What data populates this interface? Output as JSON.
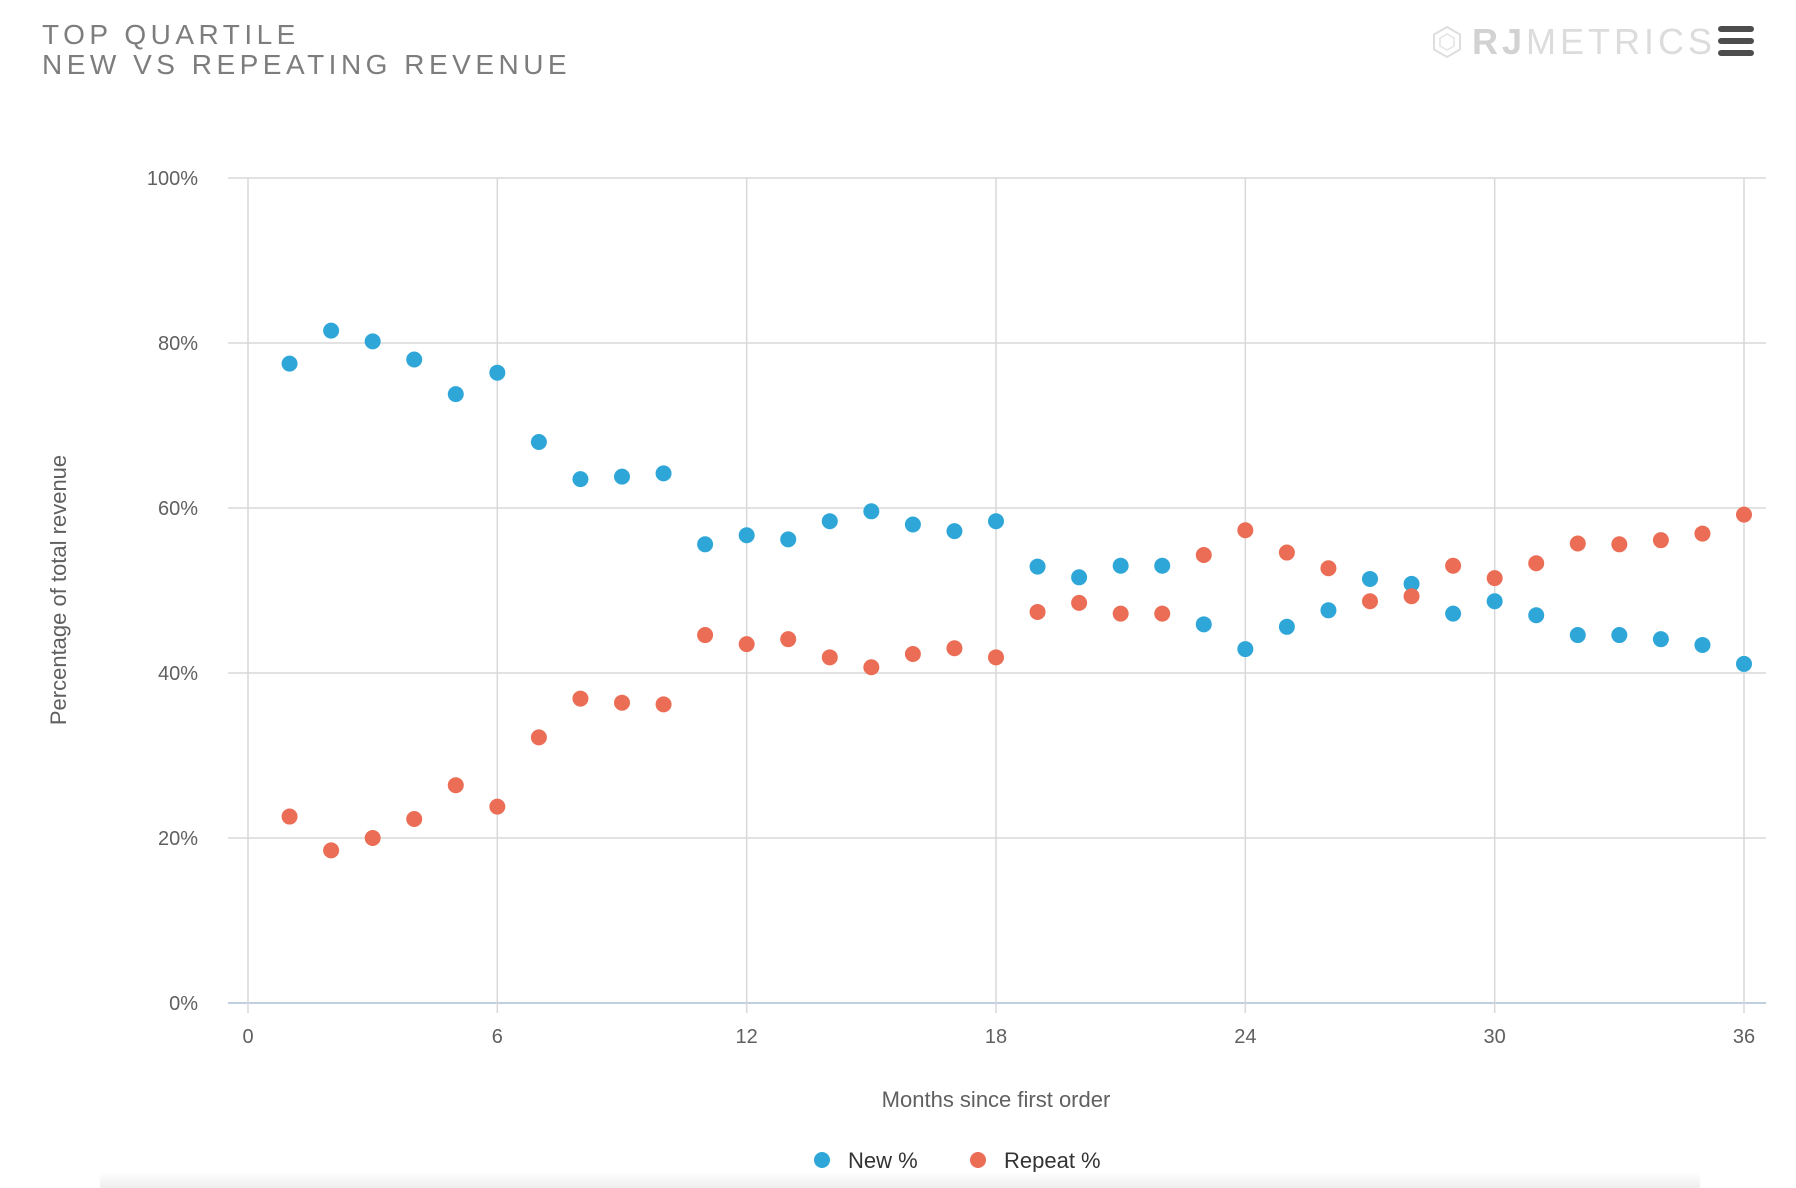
{
  "header": {
    "title_line1": "TOP QUARTILE",
    "title_line2": "NEW VS REPEATING REVENUE",
    "brand_bold": "RJ",
    "brand_light": "METRICS",
    "menu_icon": "hamburger-menu-icon"
  },
  "chart_data": {
    "type": "scatter",
    "title": "TOP QUARTILE NEW VS REPEATING REVENUE",
    "xlabel": "Months since first order",
    "ylabel": "Percentage of total revenue",
    "xlim": [
      0,
      36
    ],
    "ylim": [
      0,
      100
    ],
    "xticks": [
      0,
      6,
      12,
      18,
      24,
      30,
      36
    ],
    "yticks": [
      0,
      20,
      40,
      60,
      80,
      100
    ],
    "ytick_suffix": "%",
    "grid": true,
    "legend_position": "bottom-center",
    "x": [
      1,
      2,
      3,
      4,
      5,
      6,
      7,
      8,
      9,
      10,
      11,
      12,
      13,
      14,
      15,
      16,
      17,
      18,
      19,
      20,
      21,
      22,
      23,
      24,
      25,
      26,
      27,
      28,
      29,
      30,
      31,
      32,
      33,
      34,
      35,
      36
    ],
    "series": [
      {
        "name": "New %",
        "color": "#2ea7d8",
        "values": [
          77.5,
          81.5,
          80.2,
          78.0,
          73.8,
          76.4,
          68.0,
          63.5,
          63.8,
          64.2,
          55.6,
          56.7,
          56.2,
          58.4,
          59.6,
          58.0,
          57.2,
          58.4,
          52.9,
          51.6,
          53.0,
          53.0,
          45.9,
          42.9,
          45.6,
          47.6,
          51.4,
          50.8,
          47.2,
          48.7,
          47.0,
          44.6,
          44.6,
          44.1,
          43.4,
          41.1
        ]
      },
      {
        "name": "Repeat %",
        "color": "#eb6d55",
        "values": [
          22.6,
          18.5,
          20.0,
          22.3,
          26.4,
          23.8,
          32.2,
          36.9,
          36.4,
          36.2,
          44.6,
          43.5,
          44.1,
          41.9,
          40.7,
          42.3,
          43.0,
          41.9,
          47.4,
          48.5,
          47.2,
          47.2,
          54.3,
          57.3,
          54.6,
          52.7,
          48.7,
          49.3,
          53.0,
          51.5,
          53.3,
          55.7,
          55.6,
          56.1,
          56.9,
          59.2
        ]
      }
    ]
  }
}
